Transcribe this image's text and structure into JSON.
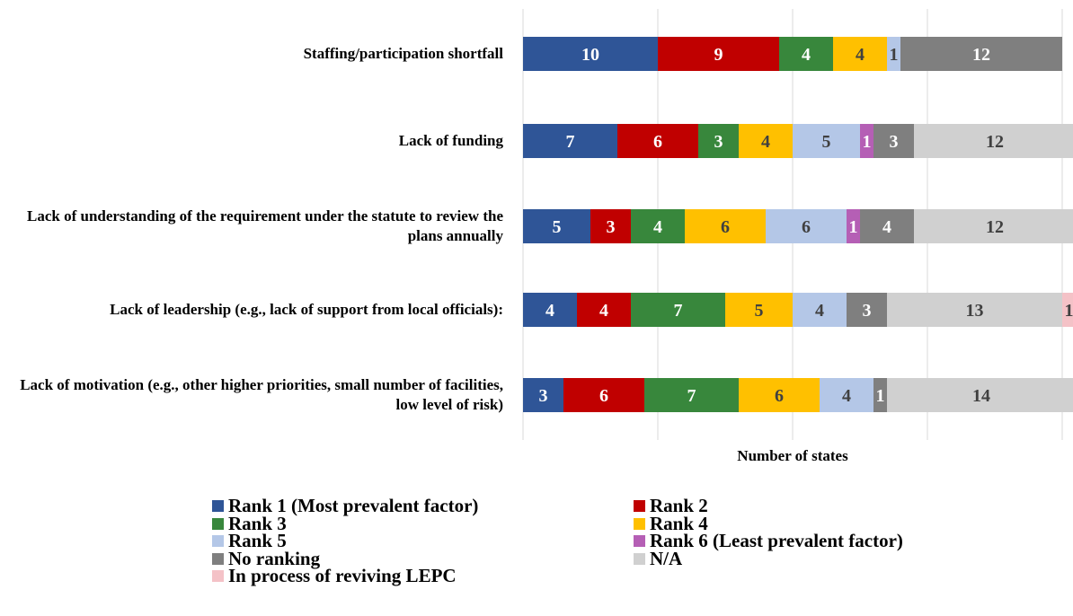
{
  "chart_data": {
    "type": "stacked_barh",
    "x_label": "Number of states",
    "categories": [
      "Staffing/participation shortfall",
      "Lack of funding",
      "Lack of understanding of the requirement under the statute to review the plans annually",
      "Lack of leadership (e.g., lack of support from local officials):",
      "Lack of motivation (e.g., other higher priorities, small number of facilities, low level of risk)"
    ],
    "series": [
      {
        "name": "Rank 1 (Most prevalent factor)",
        "color": "#2f5597",
        "values": [
          10,
          7,
          5,
          4,
          3
        ]
      },
      {
        "name": "Rank 2",
        "color": "#c00000",
        "values": [
          9,
          6,
          3,
          4,
          6
        ]
      },
      {
        "name": "Rank 3",
        "color": "#38873c",
        "values": [
          4,
          3,
          4,
          7,
          7
        ]
      },
      {
        "name": "Rank 4",
        "color": "#ffc000",
        "values": [
          4,
          4,
          6,
          5,
          6
        ]
      },
      {
        "name": "Rank 5",
        "color": "#b4c7e7",
        "values": [
          1,
          5,
          6,
          4,
          4
        ]
      },
      {
        "name": "Rank 6 (Least prevalent factor)",
        "color": "#b55fb5",
        "values": [
          null,
          1,
          1,
          null,
          null
        ]
      },
      {
        "name": "No ranking",
        "color": "#7f7f7f",
        "values": [
          12,
          3,
          4,
          3,
          1
        ]
      },
      {
        "name": "N/A",
        "color": "#d0d0d0",
        "values": [
          null,
          12,
          12,
          13,
          14
        ]
      },
      {
        "name": "In process of reviving LEPC",
        "color": "#f4c2c7",
        "values": [
          null,
          null,
          null,
          1,
          null
        ]
      }
    ],
    "xlim": [
      0,
      40
    ],
    "xticks": [
      0,
      10,
      20,
      30,
      40
    ],
    "grid": true
  }
}
